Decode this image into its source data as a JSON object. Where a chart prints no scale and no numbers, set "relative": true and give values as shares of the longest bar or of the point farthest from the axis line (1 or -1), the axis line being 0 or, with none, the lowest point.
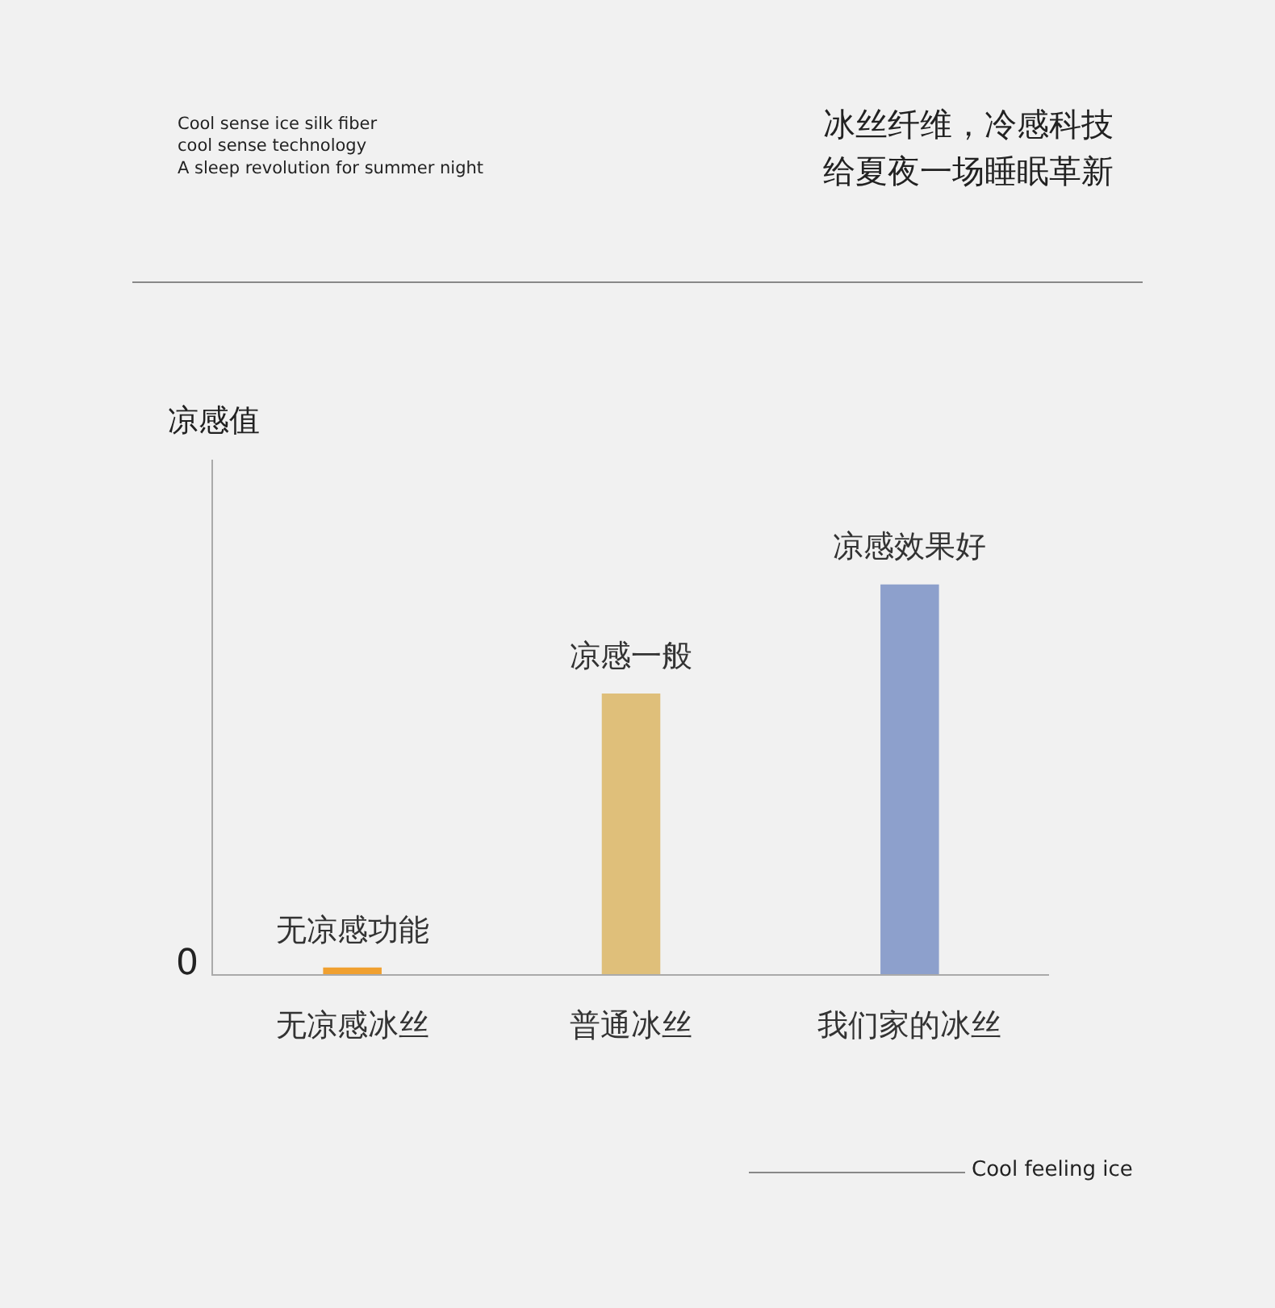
{
  "chart_data": {
    "type": "bar",
    "relative": true,
    "categories": [
      "无凉感冰丝",
      "普通冰丝",
      "我们家的冰丝"
    ],
    "colors": [
      "#f0a030",
      "#dfbf7a",
      "#8da0cc"
    ],
    "values": [
      0.017,
      0.72,
      1
    ],
    "grid": false,
    "legend": false,
    "annotations": [
      "Cool sense ice silk fiber\ncool sense technology\nA sleep revolution for summer night",
      "冰丝纤维，冷感科技",
      "给夏夜一场睡眠革新",
      "凉感值",
      "0",
      {
        "text": "无凉感功能",
        "x": "无凉感冰丝",
        "y": 0.017
      },
      {
        "text": "凉感一般",
        "x": "普通冰丝",
        "y": 0.72
      },
      {
        "text": "凉感效果好",
        "x": "我们家的冰丝",
        "y": 1
      },
      "Cool feeling ice"
    ]
  }
}
